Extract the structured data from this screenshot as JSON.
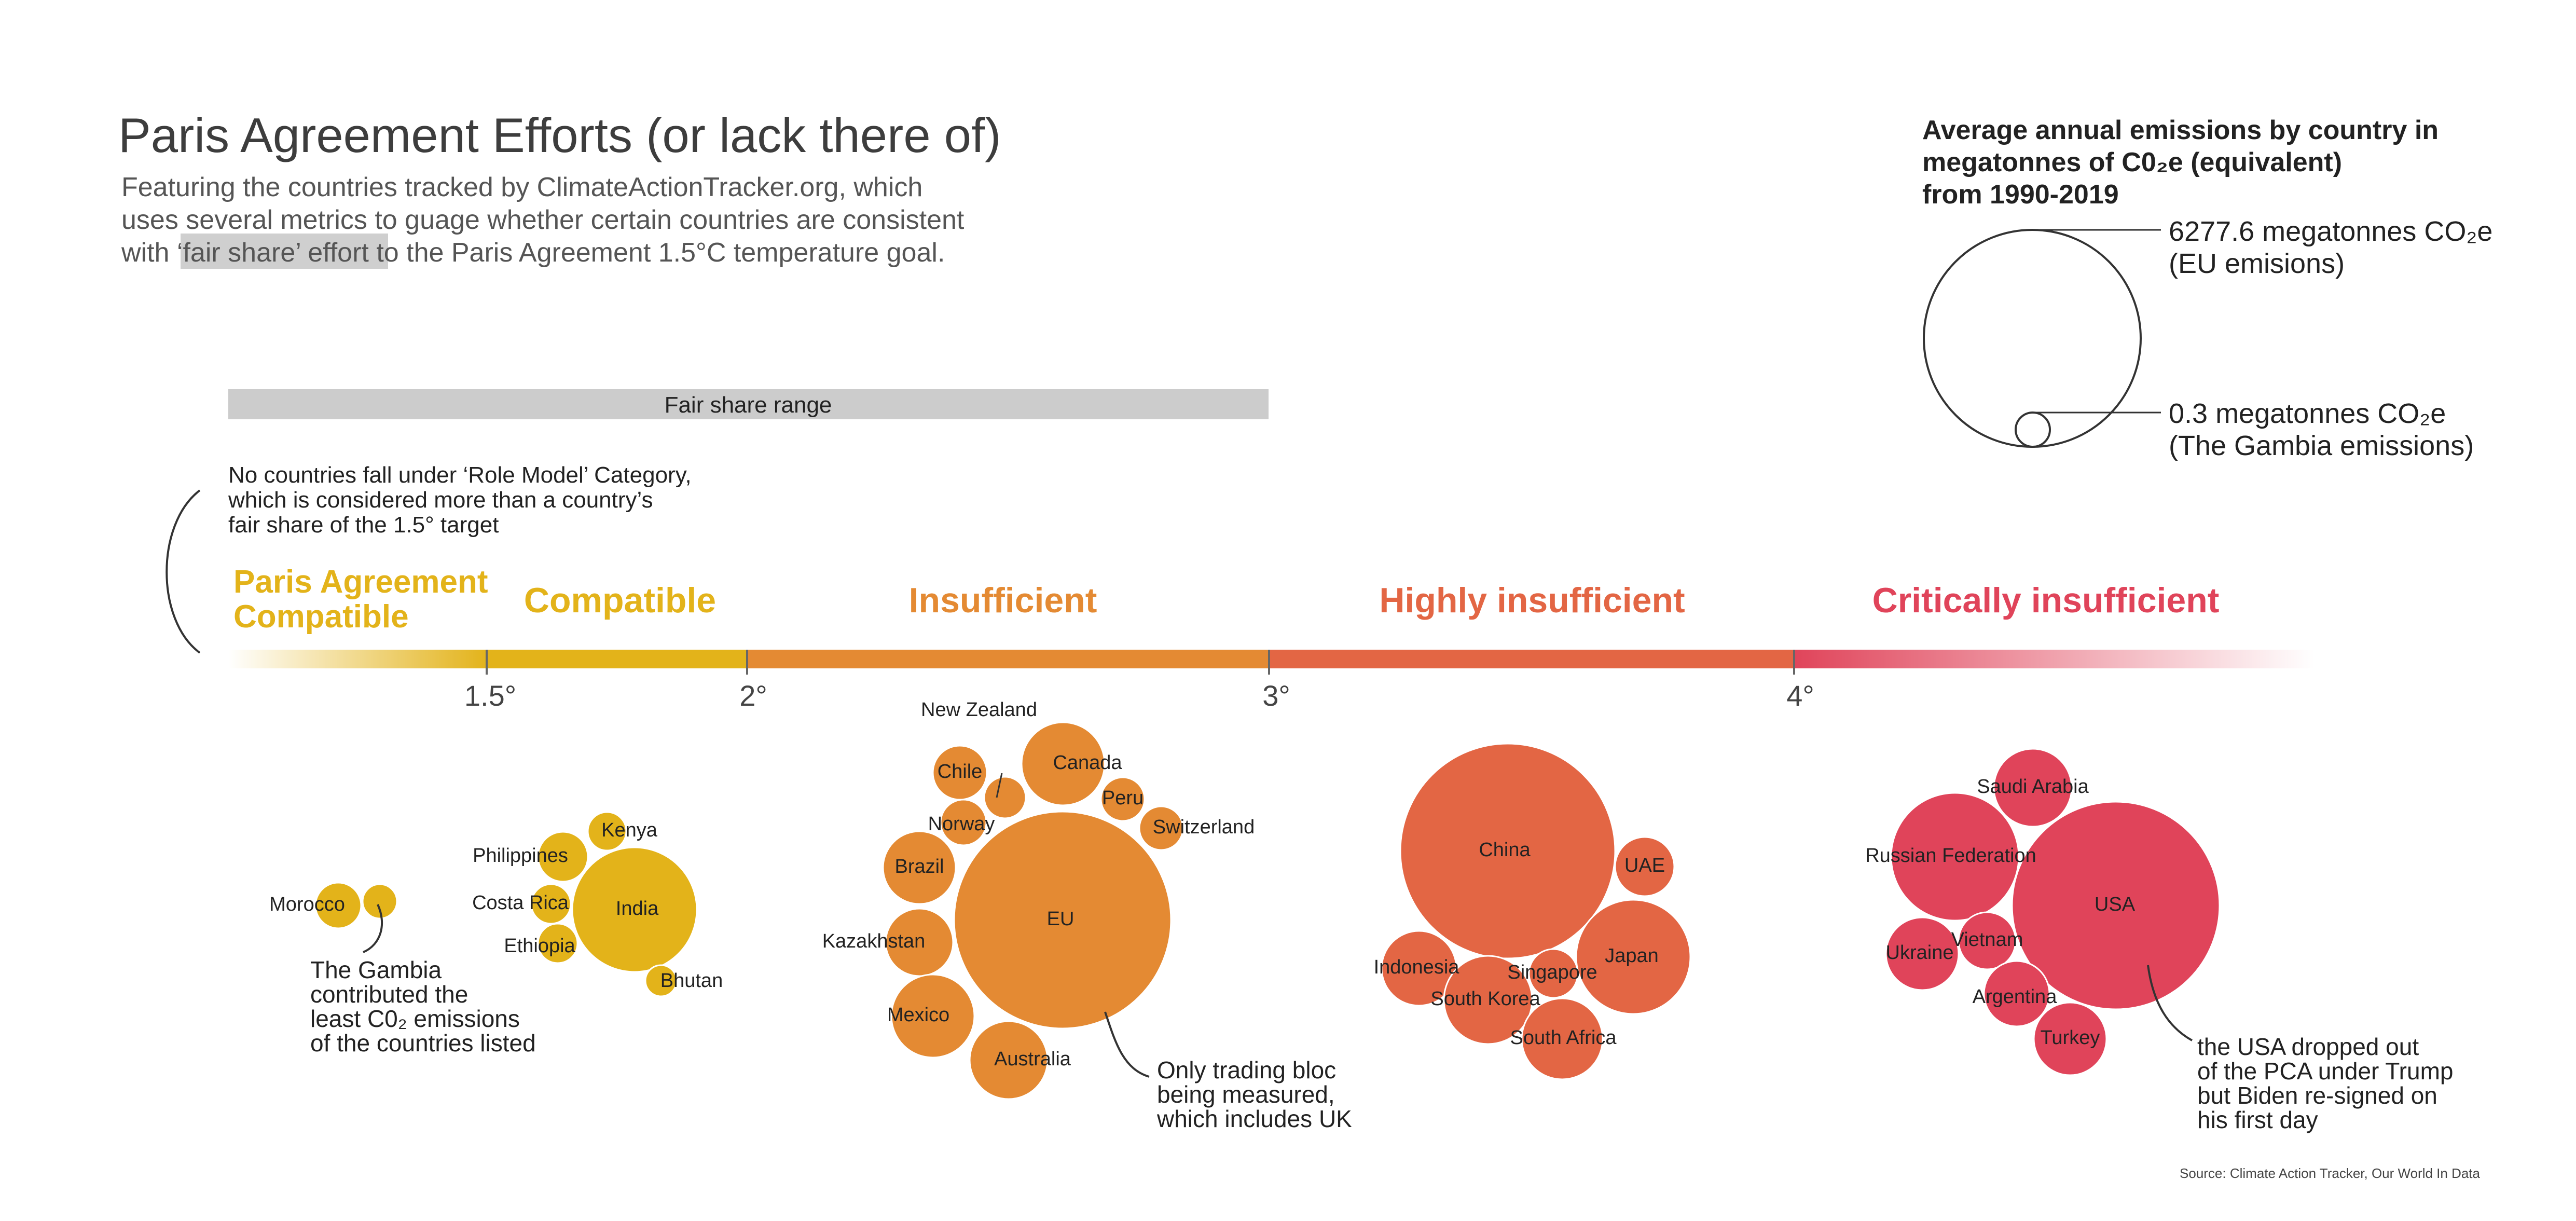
{
  "title": "Paris Agreement Efforts (or lack there of)",
  "subtitle": {
    "line1": "Featuring the countries tracked by ClimateActionTracker.org, which",
    "line2": "uses several metrics to guage whether certain countries are consistent",
    "line3_pre": "with ",
    "line3_highlight": "‘fair share’ effort",
    "line3_post": " to the Paris Agreement 1.5°C temperature goal."
  },
  "legend": {
    "title_lines": [
      "Average annual emissions by country in",
      "megatonnes of C0₂e (equivalent)",
      "from 1990-2019"
    ],
    "large_lines": [
      "6277.6 megatonnes CO₂e",
      "(EU emisions)"
    ],
    "small_lines": [
      "0.3 megatonnes CO₂e",
      "(The Gambia emissions)"
    ]
  },
  "fair_share_label": "Fair share range",
  "role_model_note": [
    "No countries fall under ‘Role Model’ Category,",
    "which is considered more than a country’s",
    "fair share of the 1.5° target"
  ],
  "categories": [
    {
      "lines": [
        "Paris Agreement",
        "Compatible"
      ],
      "color": "#e3b31a"
    },
    {
      "lines": [
        "Compatible"
      ],
      "color": "#e3b31a"
    },
    {
      "lines": [
        "Insufficient"
      ],
      "color": "#e48a33"
    },
    {
      "lines": [
        "Highly insufficient"
      ],
      "color": "#e36644"
    },
    {
      "lines": [
        "Critically insufficient"
      ],
      "color": "#e0445a"
    }
  ],
  "ticks": [
    "1.5°",
    "2°",
    "3°",
    "4°"
  ],
  "countries": [
    {
      "name": "Morocco",
      "category": "Paris Agreement Compatible",
      "color": "#e3b31a"
    },
    {
      "name": "The Gambia",
      "category": "Paris Agreement Compatible",
      "color": "#e3b31a"
    },
    {
      "name": "Philippines",
      "category": "Compatible",
      "color": "#e3b31a"
    },
    {
      "name": "Kenya",
      "category": "Compatible",
      "color": "#e3b31a"
    },
    {
      "name": "Costa Rica",
      "category": "Compatible",
      "color": "#e3b31a"
    },
    {
      "name": "India",
      "category": "Compatible",
      "color": "#e3b31a"
    },
    {
      "name": "Ethiopia",
      "category": "Compatible",
      "color": "#e3b31a"
    },
    {
      "name": "Bhutan",
      "category": "Compatible",
      "color": "#e3b31a"
    },
    {
      "name": "New Zealand",
      "category": "Insufficient",
      "color": "#e48a33"
    },
    {
      "name": "Canada",
      "category": "Insufficient",
      "color": "#e48a33"
    },
    {
      "name": "Chile",
      "category": "Insufficient",
      "color": "#e48a33"
    },
    {
      "name": "Peru",
      "category": "Insufficient",
      "color": "#e48a33"
    },
    {
      "name": "Norway",
      "category": "Insufficient",
      "color": "#e48a33"
    },
    {
      "name": "Switzerland",
      "category": "Insufficient",
      "color": "#e48a33"
    },
    {
      "name": "Brazil",
      "category": "Insufficient",
      "color": "#e48a33"
    },
    {
      "name": "EU",
      "category": "Insufficient",
      "color": "#e48a33"
    },
    {
      "name": "Kazakhstan",
      "category": "Insufficient",
      "color": "#e48a33"
    },
    {
      "name": "Mexico",
      "category": "Insufficient",
      "color": "#e48a33"
    },
    {
      "name": "Australia",
      "category": "Insufficient",
      "color": "#e48a33"
    },
    {
      "name": "China",
      "category": "Highly insufficient",
      "color": "#e36644"
    },
    {
      "name": "UAE",
      "category": "Highly insufficient",
      "color": "#e36644"
    },
    {
      "name": "Indonesia",
      "category": "Highly insufficient",
      "color": "#e36644"
    },
    {
      "name": "Singapore",
      "category": "Highly insufficient",
      "color": "#e36644"
    },
    {
      "name": "Japan",
      "category": "Highly insufficient",
      "color": "#e36644"
    },
    {
      "name": "South Korea",
      "category": "Highly insufficient",
      "color": "#e36644"
    },
    {
      "name": "South Africa",
      "category": "Highly insufficient",
      "color": "#e36644"
    },
    {
      "name": "Saudi Arabia",
      "category": "Critically insufficient",
      "color": "#e0445a"
    },
    {
      "name": "Russian Federation",
      "category": "Critically insufficient",
      "color": "#e0445a"
    },
    {
      "name": "USA",
      "category": "Critically insufficient",
      "color": "#e0445a"
    },
    {
      "name": "Vietnam",
      "category": "Critically insufficient",
      "color": "#e0445a"
    },
    {
      "name": "Ukraine",
      "category": "Critically insufficient",
      "color": "#e0445a"
    },
    {
      "name": "Argentina",
      "category": "Critically insufficient",
      "color": "#e0445a"
    },
    {
      "name": "Turkey",
      "category": "Critically insufficient",
      "color": "#e0445a"
    }
  ],
  "annotations": {
    "gambia": [
      "The Gambia",
      "contributed the",
      "least C0₂ emissions",
      "of the countries listed"
    ],
    "eu": [
      "Only trading bloc",
      "being measured,",
      "which includes UK"
    ],
    "usa": [
      "the USA dropped out",
      "of the PCA under Trump",
      "but Biden re-signed on",
      "his first day"
    ]
  },
  "source": "Source: Climate Action Tracker, Our World In Data"
}
